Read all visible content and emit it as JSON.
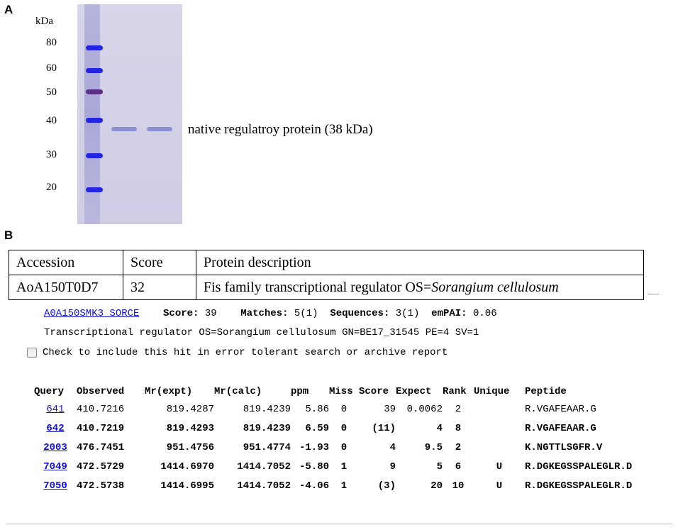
{
  "panel_a": {
    "label": "A",
    "unit_label": "kDa",
    "markers": [
      "80",
      "60",
      "50",
      "40",
      "30",
      "20"
    ],
    "band_annotation": "native regulatroy protein (38 kDa)"
  },
  "panel_b": {
    "label": "B",
    "table": {
      "headers": [
        "Accession",
        "Score",
        "Protein description"
      ],
      "row": {
        "accession": "AoA150T0D7",
        "score": "32",
        "description_prefix": "Fis family transcriptional regulator OS=",
        "description_species": "Sorangium cellulosum"
      }
    },
    "hit": {
      "accession_link": "A0A150SMK3_SORCE",
      "score_label": "Score:",
      "score": "39",
      "matches_label": "Matches:",
      "matches": "5(1)",
      "sequences_label": "Sequences:",
      "sequences": "3(1)",
      "empai_label": "emPAI:",
      "empai": "0.06",
      "description": "Transcriptional regulator OS=Sorangium cellulosum GN=BE17_31545 PE=4 SV=1",
      "checkbox_label": "Check to include this hit in error tolerant search or archive report"
    },
    "peptides": {
      "headers": [
        "Query",
        "Observed",
        "Mr(expt)",
        "Mr(calc)",
        "ppm",
        "Miss",
        "Score",
        "Expect",
        "Rank",
        "Unique",
        "Peptide"
      ],
      "rows": [
        [
          "641",
          "410.7216",
          "819.4287",
          "819.4239",
          "5.86",
          "0",
          "39",
          "0.0062",
          "2",
          "",
          "R.VGAFEAAR.G"
        ],
        [
          "642",
          "410.7219",
          "819.4293",
          "819.4239",
          "6.59",
          "0",
          "(11)",
          "4",
          "8",
          "",
          "R.VGAFEAAR.G"
        ],
        [
          "2003",
          "476.7451",
          "951.4756",
          "951.4774",
          "-1.93",
          "0",
          "4",
          "9.5",
          "2",
          "",
          "K.NGTTLSGFR.V"
        ],
        [
          "7049",
          "472.5729",
          "1414.6970",
          "1414.7052",
          "-5.80",
          "1",
          "9",
          "5",
          "6",
          "U",
          "R.DGKEGSSPALEGLR.D"
        ],
        [
          "7050",
          "472.5738",
          "1414.6995",
          "1414.7052",
          "-4.06",
          "1",
          "(3)",
          "20",
          "10",
          "U",
          "R.DGKEGSSPALEGLR.D"
        ]
      ]
    }
  }
}
